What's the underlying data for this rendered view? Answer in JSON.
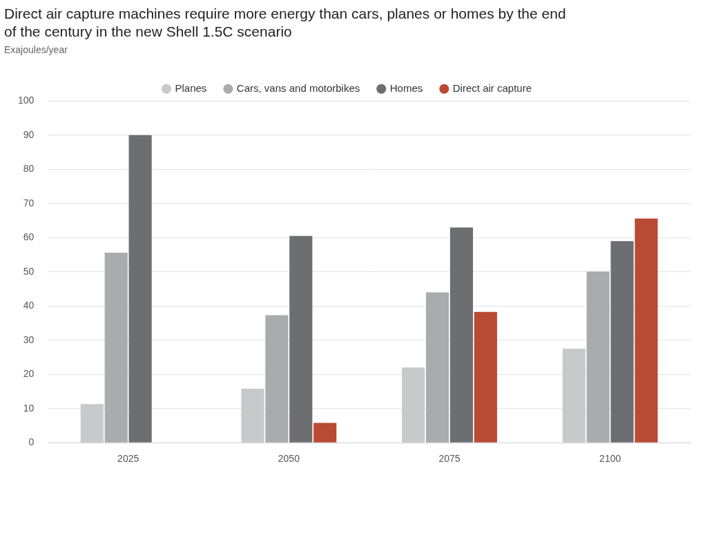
{
  "chart_data": {
    "type": "bar",
    "title": [
      "Direct air capture machines require more energy than cars, planes or homes by the end",
      "of the century in the new Shell 1.5C scenario"
    ],
    "subtitle": "Exajoules/year",
    "categories": [
      "2025",
      "2050",
      "2075",
      "2100"
    ],
    "series": [
      {
        "name": "Planes",
        "color": "#c8c9cb",
        "values": [
          11.3,
          15.8,
          22,
          27.5
        ]
      },
      {
        "name": "Cars, vans and motorbikes",
        "color": "#aaabad",
        "values": [
          55.6,
          37.3,
          44,
          50.1
        ]
      },
      {
        "name": "Homes",
        "color": "#6d6e71",
        "values": [
          90,
          60.5,
          63,
          59
        ]
      },
      {
        "name": "Direct air capture",
        "color": "#b94a34",
        "values": [
          null,
          5.8,
          38.3,
          65.6
        ]
      }
    ],
    "ylim": [
      0,
      100
    ],
    "yticks": [
      0,
      10,
      20,
      30,
      40,
      50,
      60,
      70,
      80,
      90,
      100
    ],
    "grid": true,
    "legend": "top"
  }
}
